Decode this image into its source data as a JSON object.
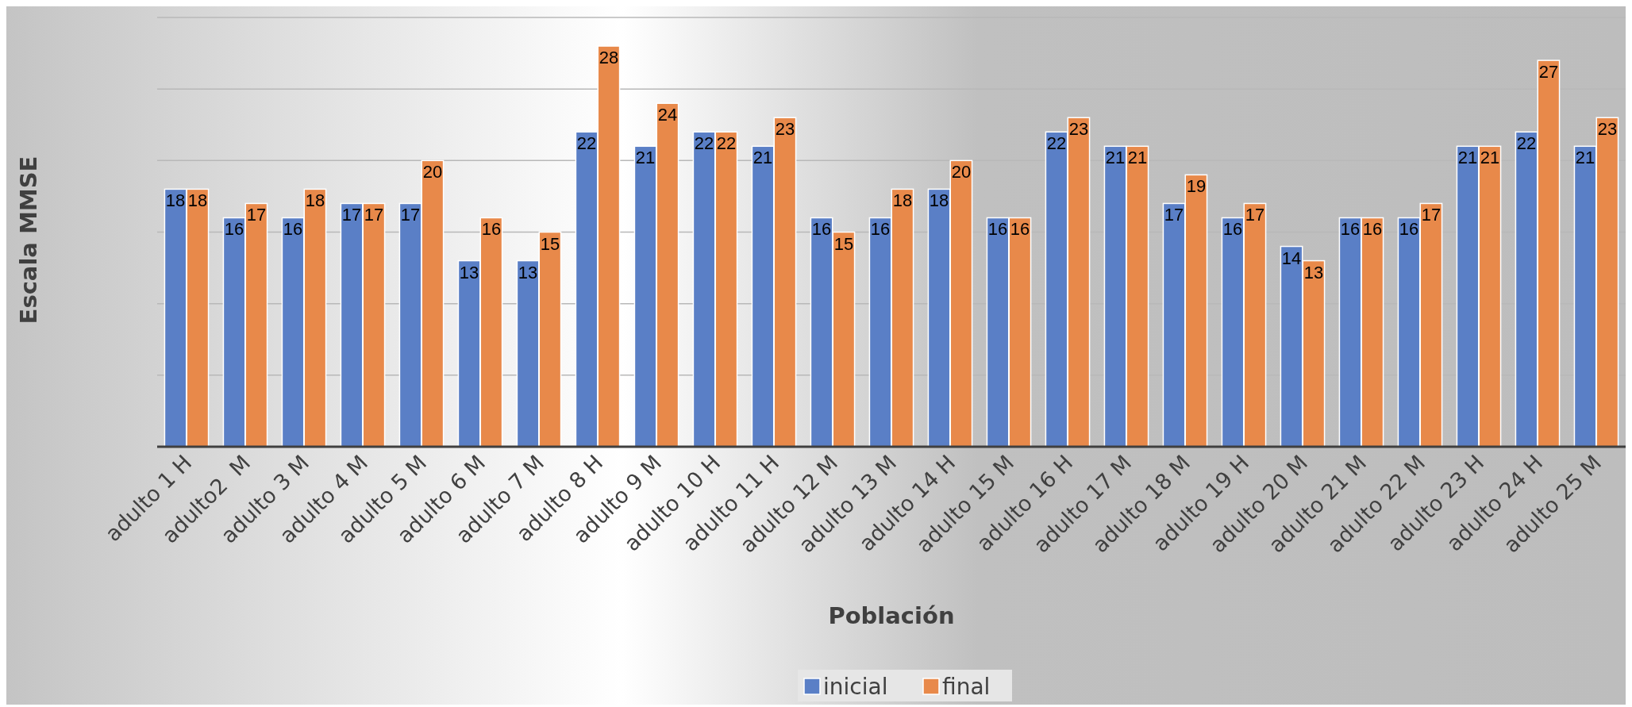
{
  "chart_data": {
    "type": "bar",
    "xlabel": "Población",
    "ylabel": "Escala MMSE",
    "categories": [
      "adulto 1 H",
      "adulto2  M",
      "adulto 3 M",
      "adulto 4 M",
      "adulto 5 M",
      "adulto 6 M",
      "adulto 7 M",
      "adulto 8 H",
      "adulto 9 M",
      "adulto 10 H",
      "adulto 11 H",
      "adulto 12 M",
      "adulto 13 M",
      "adulto 14 H",
      "adulto 15 M",
      "adulto 16 H",
      "adulto 17 M",
      "adulto 18 M",
      "adulto 19 H",
      "adulto 20 M",
      "adulto 21 M",
      "adulto 22 M",
      "adulto 23 H",
      "adulto 24 H",
      "adulto 25 M"
    ],
    "series": [
      {
        "name": "inicial",
        "color": "#5a7fc6",
        "values": [
          18,
          16,
          16,
          17,
          17,
          13,
          13,
          22,
          21,
          22,
          21,
          16,
          16,
          18,
          16,
          22,
          21,
          17,
          16,
          14,
          16,
          16,
          21,
          22,
          21
        ]
      },
      {
        "name": "final",
        "color": "#e8894a",
        "values": [
          18,
          17,
          18,
          17,
          20,
          16,
          15,
          28,
          24,
          22,
          23,
          15,
          18,
          20,
          16,
          23,
          21,
          19,
          17,
          13,
          16,
          17,
          21,
          27,
          23
        ]
      }
    ],
    "ylim": [
      0,
      30
    ],
    "yticks": [
      {
        "value": 0,
        "label": null
      },
      {
        "value": 5,
        "label": null
      },
      {
        "value": 10,
        "label": null
      },
      {
        "value": 15,
        "label": null
      },
      {
        "value": 20,
        "label": null
      },
      {
        "value": 25,
        "label": null
      },
      {
        "value": 30,
        "label": null
      }
    ],
    "tick_labels": "x",
    "grid": "y",
    "data_labels": true,
    "legend": "bottom"
  }
}
